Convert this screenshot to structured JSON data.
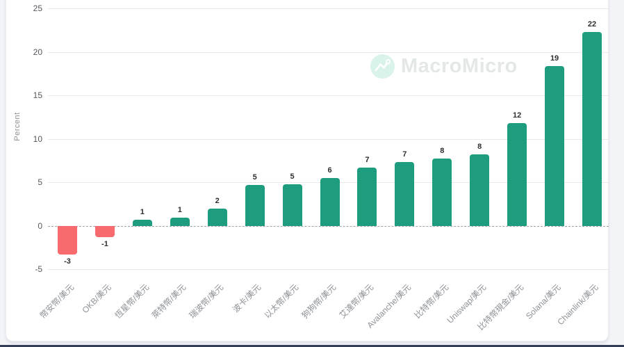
{
  "watermark": {
    "brand": "MacroMicro"
  },
  "chart_data": {
    "type": "bar",
    "title": "",
    "xlabel": "",
    "ylabel": "Percent",
    "ylim": [
      -5,
      25
    ],
    "yticks": [
      25,
      20,
      15,
      10,
      5,
      0,
      -5
    ],
    "grid": true,
    "zero_line_style": "dashed",
    "legend": null,
    "categories": [
      "幣安幣/美元",
      "OKB/美元",
      "恆星幣/美元",
      "萊特幣/美元",
      "瑞波幣/美元",
      "波卡/美元",
      "以太幣/美元",
      "狗狗幣/美元",
      "艾達幣/美元",
      "Avalanche/美元",
      "比特幣/美元",
      "Uniswap/美元",
      "比特幣現金/美元",
      "Solana/美元",
      "Chainlink/美元"
    ],
    "values": [
      -3,
      -1,
      1,
      1,
      2,
      5,
      5,
      6,
      7,
      7,
      8,
      8,
      12,
      19,
      22
    ],
    "estimated_values": [
      -3.3,
      -1.3,
      0.7,
      0.9,
      2.0,
      4.7,
      4.8,
      5.5,
      6.7,
      7.3,
      7.7,
      8.2,
      11.8,
      18.4,
      22.3
    ],
    "colors": {
      "positive": "#1d9c7e",
      "negative": "#f76b6e"
    }
  }
}
